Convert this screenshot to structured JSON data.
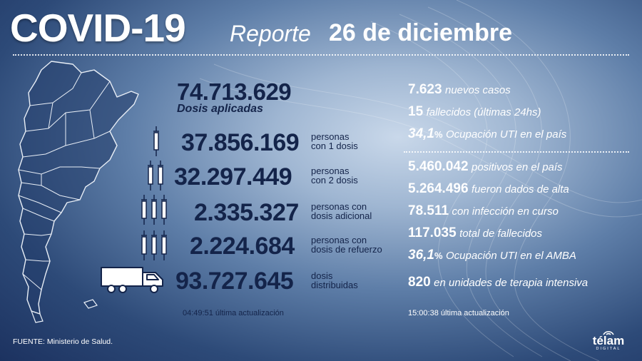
{
  "header": {
    "title": "COVID-19",
    "subtitle": "Reporte",
    "date": "26 de diciembre"
  },
  "vaccines": {
    "total": {
      "value": "74.713.629",
      "label": "Dosis aplicadas"
    },
    "rows": [
      {
        "value": "37.856.169",
        "label1": "personas",
        "label2": "con 1 dosis",
        "icon": "syringe-icon"
      },
      {
        "value": "32.297.449",
        "label1": "personas",
        "label2": "con 2 dosis",
        "icon": "syringe-icon"
      },
      {
        "value": "2.335.327",
        "label1": "personas con",
        "label2": "dosis adicional",
        "icon": "syringe-icon"
      },
      {
        "value": "2.224.684",
        "label1": "personas con",
        "label2": "dosis de refuerzo",
        "icon": "syringe-icon"
      },
      {
        "value": "93.727.645",
        "label1": "dosis",
        "label2": "distribuidas",
        "icon": "truck-icon"
      }
    ],
    "update_time": "04:49:51",
    "update_label": "última actualización"
  },
  "cases_top": [
    {
      "value": "7.623",
      "text": "nuevos casos"
    },
    {
      "value": "15",
      "text": "fallecidos (últimas 24hs)"
    },
    {
      "value": "34,1",
      "suffix": "%",
      "text": "Ocupación UTI en el país"
    }
  ],
  "cases_bottom": [
    {
      "value": "5.460.042",
      "text": "positivos en el país"
    },
    {
      "value": "5.264.496",
      "text": "fueron dados de alta"
    },
    {
      "value": "78.511",
      "text": "con infección en curso"
    },
    {
      "value": "117.035",
      "text": "total de fallecidos"
    },
    {
      "value": "36,1",
      "suffix": "%",
      "text": "Ocupación UTI en el AMBA"
    },
    {
      "value": "820",
      "text": "en unidades de terapia intensiva"
    }
  ],
  "cases_update": {
    "time": "15:00:38",
    "label": "última actualización"
  },
  "footer": {
    "source": "FUENTE: Ministerio de Salud.",
    "brand": "télam",
    "brand_sub": "DIGITAL"
  },
  "colors": {
    "dark_text": "#14244a",
    "bg_dark": "#1c3260",
    "bg_light": "#c9d8ea"
  }
}
